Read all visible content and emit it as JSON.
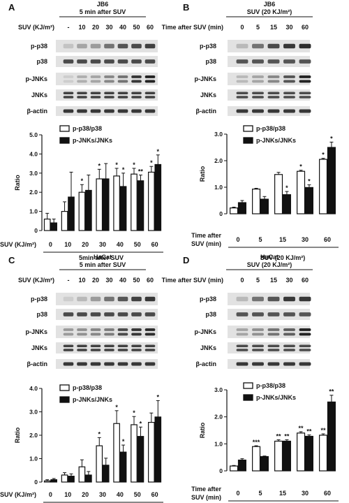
{
  "panels": [
    {
      "letter": "A",
      "title1": "JB6",
      "title2": "5 min after SUV",
      "header_label": "SUV (KJ/m²)",
      "lanes": [
        "-",
        "10",
        "20",
        "30",
        "40",
        "50",
        "60"
      ],
      "blots": [
        "p-p38",
        "p38",
        "p-JNKs",
        "JNKs",
        "β-actin"
      ],
      "blot_intensity": {
        "p-p38": [
          0.15,
          0.3,
          0.35,
          0.55,
          0.7,
          0.75,
          0.8
        ],
        "p38": [
          0.75,
          0.75,
          0.75,
          0.75,
          0.75,
          0.75,
          0.75
        ],
        "p-JNKs": [
          0.1,
          0.25,
          0.3,
          0.45,
          0.55,
          0.85,
          0.95
        ],
        "JNKs": [
          0.8,
          0.8,
          0.8,
          0.8,
          0.8,
          0.8,
          0.8
        ],
        "β-actin": [
          0.85,
          0.85,
          0.85,
          0.85,
          0.85,
          0.85,
          0.85
        ]
      },
      "chart_data": {
        "type": "bar",
        "ylabel": "Ratio",
        "ylim": [
          0,
          5
        ],
        "yticks": [
          "0",
          "1.0",
          "2.0",
          "3.0",
          "4.0",
          "5.0"
        ],
        "categories": [
          "0",
          "10",
          "20",
          "30",
          "40",
          "50",
          "60"
        ],
        "row1_label": "SUV (KJ/m²)",
        "row2_label": "",
        "group_label": "5min    after    SUV",
        "series": [
          {
            "name": "p-p38/p38",
            "values": [
              0.6,
              1.0,
              2.0,
              2.7,
              2.85,
              2.95,
              3.05
            ],
            "errors": [
              0.3,
              0.5,
              0.4,
              0.5,
              0.4,
              0.3,
              0.3
            ],
            "stars": [
              "",
              "",
              "*",
              "*",
              "*",
              "*",
              "*"
            ]
          },
          {
            "name": "p-JNKs/JNKs",
            "values": [
              0.4,
              1.75,
              2.1,
              2.7,
              2.3,
              2.6,
              3.45
            ],
            "errors": [
              0.2,
              1.3,
              0.8,
              0.8,
              0.7,
              0.3,
              0.5
            ],
            "stars": [
              "",
              "",
              "",
              "",
              "*",
              "**",
              "*"
            ]
          }
        ]
      }
    },
    {
      "letter": "B",
      "title1": "JB6",
      "title2": "SUV (20 KJ/m²)",
      "header_label": "Time after SUV (min)",
      "lanes": [
        "0",
        "5",
        "15",
        "30",
        "60"
      ],
      "blots": [
        "p-p38",
        "p38",
        "p-JNKs",
        "JNKs",
        "β-actin"
      ],
      "blot_intensity": {
        "p-p38": [
          0.2,
          0.55,
          0.75,
          0.85,
          0.9
        ],
        "p38": [
          0.7,
          0.7,
          0.7,
          0.7,
          0.7
        ],
        "p-JNKs": [
          0.2,
          0.3,
          0.45,
          0.7,
          0.95
        ],
        "JNKs": [
          0.75,
          0.75,
          0.75,
          0.75,
          0.75
        ],
        "β-actin": [
          0.85,
          0.85,
          0.85,
          0.85,
          0.85
        ]
      },
      "chart_data": {
        "type": "bar",
        "ylabel": "Ratio",
        "ylim": [
          0,
          3
        ],
        "yticks": [
          "0",
          "1.0",
          "2.0",
          "3.0"
        ],
        "categories": [
          "0",
          "5",
          "15",
          "30",
          "60"
        ],
        "row1_label": "Time after",
        "row2_label": "SUV (min)",
        "group_label": "SUV (20 KJ/m²)",
        "series": [
          {
            "name": "p-p38/p38",
            "values": [
              0.22,
              0.93,
              1.48,
              1.6,
              2.05
            ],
            "errors": [
              0.03,
              0.03,
              0.08,
              0.04,
              0.04
            ],
            "stars": [
              "",
              "",
              "",
              "*",
              "*"
            ]
          },
          {
            "name": "p-JNKs/JNKs",
            "values": [
              0.42,
              0.55,
              0.72,
              0.99,
              2.5
            ],
            "errors": [
              0.08,
              0.1,
              0.12,
              0.1,
              0.2
            ],
            "stars": [
              "",
              "",
              "*",
              "*",
              "*"
            ]
          }
        ]
      }
    },
    {
      "letter": "C",
      "title1": "HaCat",
      "title2": "5 min after SUV",
      "header_label": "SUV (KJ/m²)",
      "lanes": [
        "-",
        "10",
        "20",
        "30",
        "40",
        "50",
        "60"
      ],
      "blots": [
        "p-p38",
        "p38",
        "p-JNKs",
        "JNKs",
        "β-actin"
      ],
      "blot_intensity": {
        "p-p38": [
          0.1,
          0.2,
          0.35,
          0.55,
          0.7,
          0.8,
          0.85
        ],
        "p38": [
          0.75,
          0.75,
          0.75,
          0.75,
          0.75,
          0.75,
          0.75
        ],
        "p-JNKs": [
          0.35,
          0.4,
          0.45,
          0.5,
          0.75,
          0.85,
          0.9
        ],
        "JNKs": [
          0.8,
          0.8,
          0.8,
          0.8,
          0.8,
          0.8,
          0.8
        ],
        "β-actin": [
          0.85,
          0.85,
          0.85,
          0.85,
          0.85,
          0.85,
          0.85
        ]
      },
      "chart_data": {
        "type": "bar",
        "ylabel": "Ratio",
        "ylim": [
          0,
          4
        ],
        "yticks": [
          "0",
          "1.0",
          "2.0",
          "3.0",
          "4.0"
        ],
        "categories": [
          "0",
          "10",
          "20",
          "30",
          "40",
          "50",
          "60"
        ],
        "row1_label": "SUV (KJ/m²)",
        "row2_label": "",
        "group_label": "5min    after    SUV",
        "series": [
          {
            "name": "p-p38/p38",
            "values": [
              0.05,
              0.3,
              0.65,
              1.55,
              2.5,
              2.45,
              2.55
            ],
            "errors": [
              0.05,
              0.1,
              0.3,
              0.35,
              0.55,
              0.35,
              0.4
            ],
            "stars": [
              "",
              "",
              "",
              "*",
              "*",
              "*",
              ""
            ]
          },
          {
            "name": "p-JNKs/JNKs",
            "values": [
              0.1,
              0.25,
              0.3,
              0.72,
              1.28,
              1.95,
              2.78
            ],
            "errors": [
              0.05,
              0.1,
              0.15,
              0.3,
              0.3,
              0.4,
              0.7
            ],
            "stars": [
              "",
              "",
              "",
              "",
              "*",
              "*",
              "*"
            ]
          }
        ]
      }
    },
    {
      "letter": "D",
      "title1": "HaCat",
      "title2": "SUV (20 KJ/m²)",
      "header_label": "Time after SUV (min)",
      "lanes": [
        "0",
        "5",
        "15",
        "30",
        "60"
      ],
      "blots": [
        "p-p38",
        "p38",
        "p-JNKs",
        "JNKs",
        "β-actin"
      ],
      "blot_intensity": {
        "p-p38": [
          0.2,
          0.55,
          0.7,
          0.85,
          0.85
        ],
        "p38": [
          0.7,
          0.7,
          0.7,
          0.7,
          0.7
        ],
        "p-JNKs": [
          0.3,
          0.4,
          0.55,
          0.65,
          0.95
        ],
        "JNKs": [
          0.75,
          0.75,
          0.75,
          0.75,
          0.75
        ],
        "β-actin": [
          0.85,
          0.85,
          0.85,
          0.85,
          0.85
        ]
      },
      "chart_data": {
        "type": "bar",
        "ylabel": "Ratio",
        "ylim": [
          0,
          3
        ],
        "yticks": [
          "0",
          "1.0",
          "2.0",
          "3.0"
        ],
        "categories": [
          "0",
          "5",
          "15",
          "30",
          "60"
        ],
        "row1_label": "Time after",
        "row2_label": "SUV (min)",
        "group_label": "SUV (20 KJ/m²)",
        "series": [
          {
            "name": "p-p38/p38",
            "values": [
              0.18,
              0.9,
              1.1,
              1.4,
              1.32
            ],
            "errors": [
              0.02,
              0.03,
              0.05,
              0.05,
              0.05
            ],
            "stars": [
              "",
              "***",
              "**",
              "**",
              "**"
            ]
          },
          {
            "name": "p-JNKs/JNKs",
            "values": [
              0.4,
              0.53,
              1.1,
              1.28,
              2.55
            ],
            "errors": [
              0.05,
              0.02,
              0.05,
              0.05,
              0.25
            ],
            "stars": [
              "",
              "",
              "**",
              "**",
              "**"
            ]
          }
        ]
      }
    }
  ]
}
